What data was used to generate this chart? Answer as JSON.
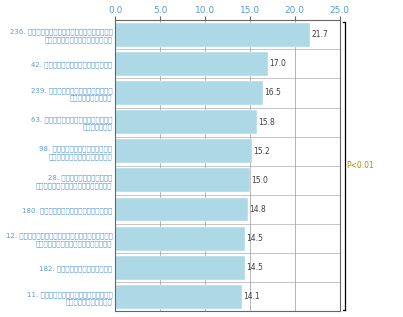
{
  "categories": [
    "236. 人の輪の中でどのように振る舞えばいいのか\nわからないため会食はおそろしい。",
    "42. においの強い食品は食べられない。",
    "239. 大人数の食事は、音や匆いなどの\n情報があふれて辛い。",
    "63. 自分が予想していた味と違う味だと\n食べられない。",
    "98. 魚の小骨は全部はずさないと、\n必ずのどに引っかかってしまう。",
    "28. 色や形以前に、見るだけで\n気持ち悪かったり、怖い食べ物がある。",
    "180. ブロッコリーは、体が受け付けない。",
    "12. 頭をよく動かせている時には水分が欲しくなり、\n四六時中ガバガバと水を飲んでしまう。",
    "182. 納豆は、体が受け付けない。",
    "11. 非常に喝が渇き、一日に何リットルも\n飲み物を飲んでしまう。"
  ],
  "values": [
    21.7,
    17.0,
    16.5,
    15.8,
    15.2,
    15.0,
    14.8,
    14.5,
    14.5,
    14.1
  ],
  "bar_color": "#add8e6",
  "bar_edge_color": "#add8e6",
  "label_color": "#5b9bd5",
  "value_color": "#404040",
  "xlim": [
    0,
    25.0
  ],
  "xtick_labels": [
    "0.0",
    "5.0",
    "10.0",
    "15.0",
    "20.0",
    "25.0"
  ],
  "xtick_values": [
    0.0,
    5.0,
    10.0,
    15.0,
    20.0,
    25.0
  ],
  "annotation": "P<0.01",
  "annotation_color": "#b8860b",
  "spine_color": "#666666",
  "grid_color": "#999999"
}
